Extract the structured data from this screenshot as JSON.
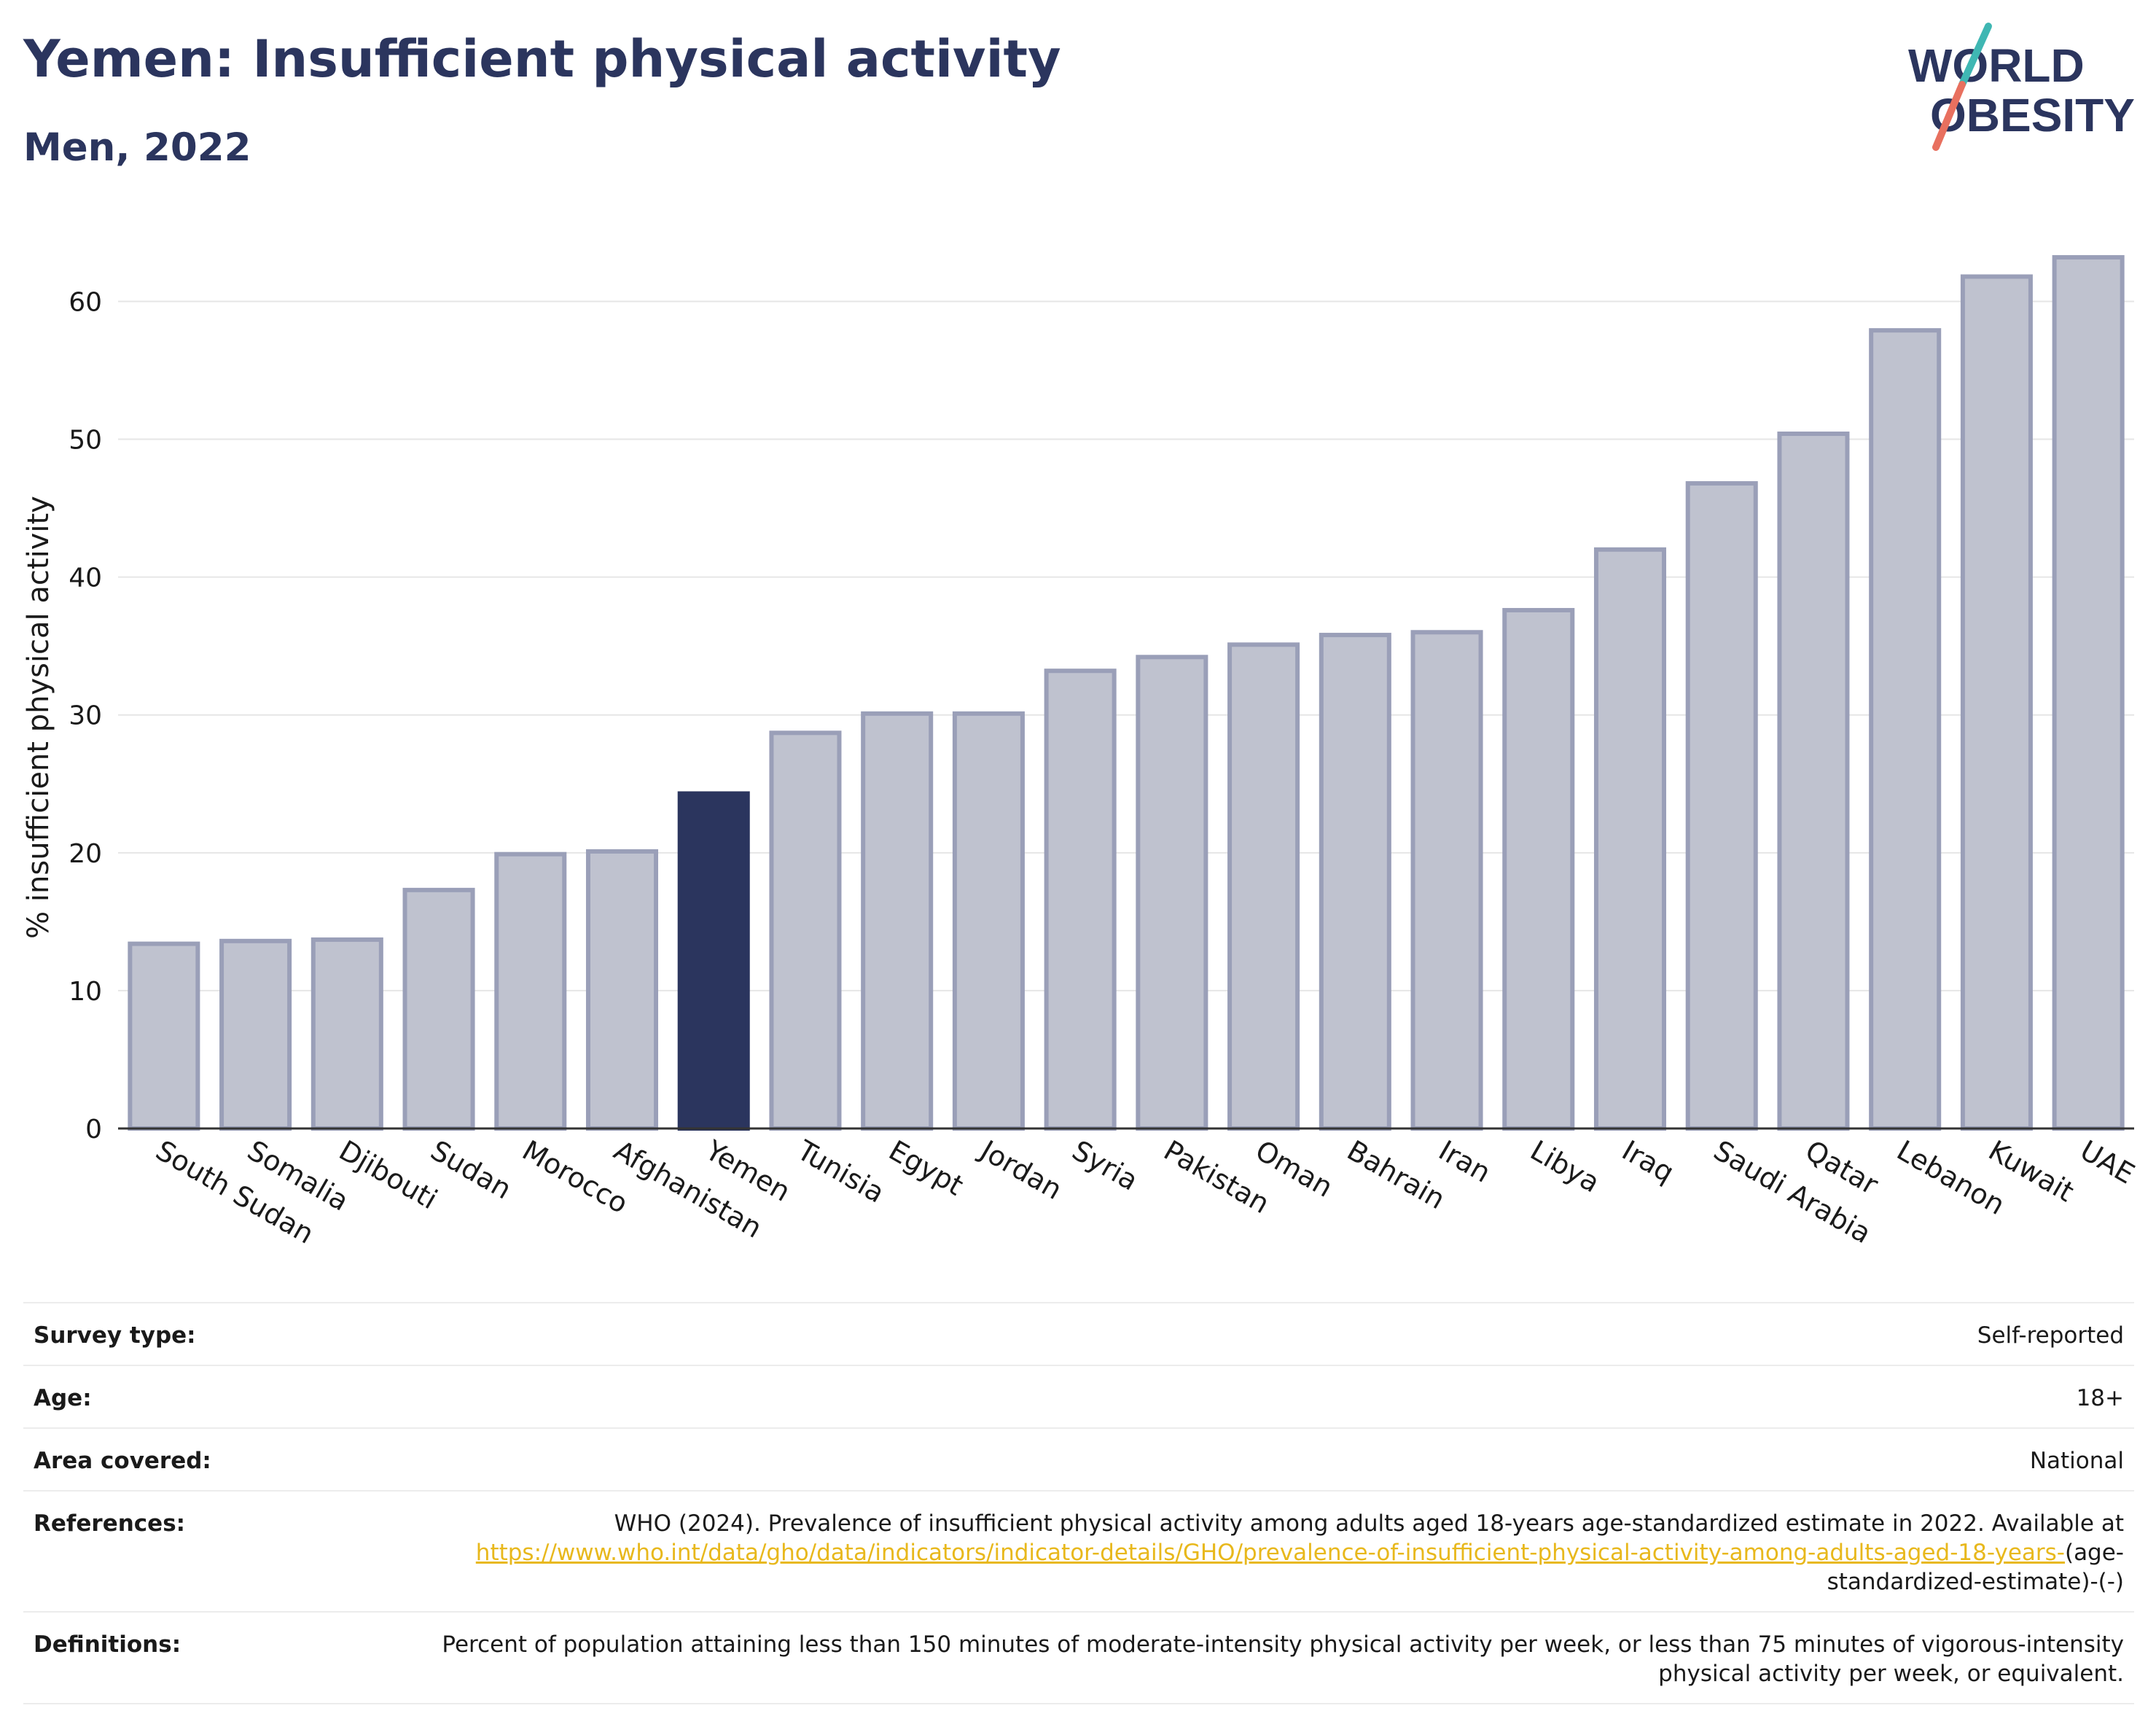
{
  "header": {
    "title": "Yemen: Insufficient physical activity",
    "subtitle": "Men, 2022"
  },
  "logo": {
    "line1": "WORLD",
    "line2": "OBESITY",
    "colors": {
      "text": "#2b355e",
      "slash_teal": "#3fb7b3",
      "slash_coral": "#e8705f"
    }
  },
  "chart_data": {
    "type": "bar",
    "categories": [
      "South Sudan",
      "Somalia",
      "Djibouti",
      "Sudan",
      "Morocco",
      "Afghanistan",
      "Yemen",
      "Tunisia",
      "Egypt",
      "Jordan",
      "Syria",
      "Pakistan",
      "Oman",
      "Bahrain",
      "Iran",
      "Libya",
      "Iraq",
      "Saudi Arabia",
      "Qatar",
      "Lebanon",
      "Kuwait",
      "UAE"
    ],
    "values": [
      13.4,
      13.6,
      13.7,
      17.3,
      19.9,
      20.1,
      24.3,
      28.7,
      30.1,
      30.1,
      33.2,
      34.2,
      35.1,
      35.8,
      36.0,
      37.6,
      42.0,
      46.8,
      50.4,
      57.9,
      61.8,
      63.2
    ],
    "highlight": "Yemen",
    "title": "",
    "xlabel": "",
    "ylabel": "% insufficient physical activity",
    "ylim": [
      0,
      66
    ],
    "yticks": [
      0,
      10,
      20,
      30,
      40,
      50,
      60
    ],
    "grid": true,
    "colors": {
      "bar": "#bfc2cf",
      "bar_border": "#9a9fb8",
      "highlight": "#2b355e",
      "grid": "#e6e6e6",
      "axis": "#333333"
    }
  },
  "info": {
    "survey_type": {
      "label": "Survey type:",
      "value": "Self-reported"
    },
    "age": {
      "label": "Age:",
      "value": "18+"
    },
    "area_covered": {
      "label": "Area covered:",
      "value": "National"
    },
    "references": {
      "label": "References:",
      "text": "WHO (2024). Prevalence of insufficient physical activity among adults aged 18-years age-standardized estimate in 2022. Available at",
      "link": "https://www.who.int/data/gho/data/indicators/indicator-details/GHO/prevalence-of-insufficient-physical-activity-among-adults-aged-18-years-",
      "suffix": "(age-standardized-estimate)-(-)"
    },
    "definitions": {
      "label": "Definitions:",
      "value": "Percent of population attaining less than 150 minutes of moderate-intensity physical activity per week, or less than 75 minutes of vigorous-intensity physical activity per week, or equivalent."
    }
  }
}
